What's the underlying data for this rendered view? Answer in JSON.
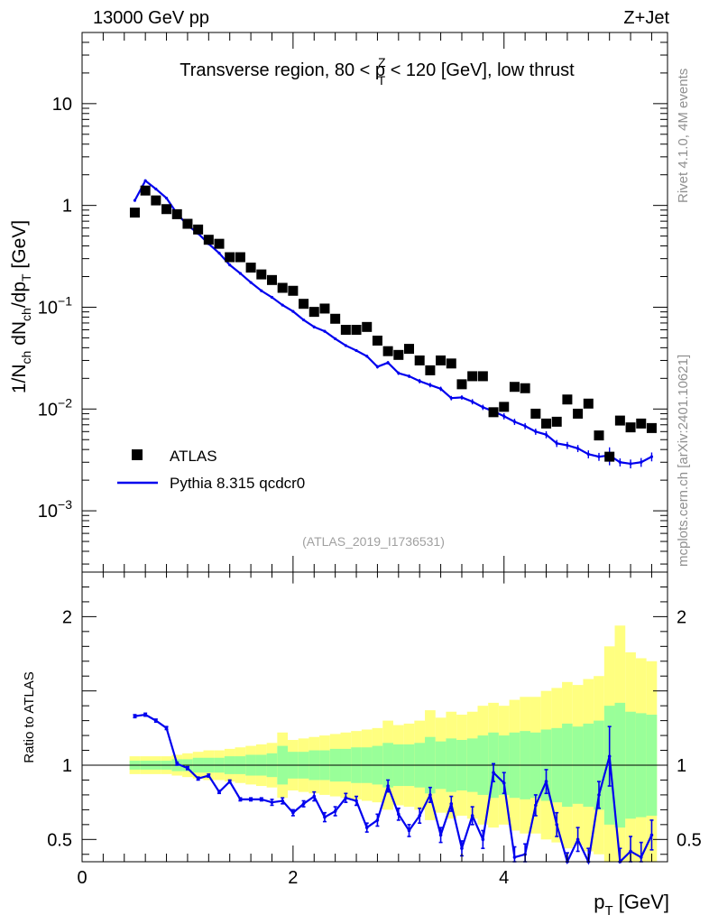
{
  "header": {
    "left": "13000 GeV pp",
    "right": "Z+Jet"
  },
  "side_labels": {
    "rivet": "Rivet 4.1.0,  4M events",
    "mcplots": "mcplots.cern.ch [arXiv:2401.10621]"
  },
  "chart_data": {
    "type": "scatter",
    "title": "Transverse region, 80 < p",
    "title_sup": "Z",
    "title_sub": "T",
    "title_tail": " < 120 [GeV], low thrust",
    "analysis_id": "(ATLAS_2019_I1736531)",
    "ylabel": {
      "pre": "1/N",
      "s1": "ch",
      "mid": " dN",
      "s2": "ch",
      "mid2": "/dp",
      "s3": "T",
      "post": " [GeV]"
    },
    "xlabel": {
      "main": "p",
      "sub": "T",
      "post": " [GeV]"
    },
    "ratio_ylabel": "Ratio to ATLAS",
    "xlim": [
      0,
      5.55
    ],
    "ylim": [
      0.00025,
      50
    ],
    "yscale": "log",
    "x_ticks": [
      0,
      2,
      4
    ],
    "x_tick_labels": [
      "0",
      "2",
      "4"
    ],
    "y_ticks": [
      10,
      1,
      0.1,
      0.01,
      0.001
    ],
    "y_tick_labels": [
      {
        "base": "10",
        "exp": ""
      },
      {
        "base": "1",
        "exp": ""
      },
      {
        "base": "10",
        "exp": "−1"
      },
      {
        "base": "10",
        "exp": "−2"
      },
      {
        "base": "10",
        "exp": "−3"
      }
    ],
    "ratio_ylim": [
      0.35,
      2.3
    ],
    "ratio_ticks": [
      2,
      1,
      0.5
    ],
    "ratio_tick_labels": [
      "2",
      "1",
      "0.5"
    ],
    "legend": [
      {
        "label": "ATLAS",
        "marker": "square",
        "color": "#000000"
      },
      {
        "label": "Pythia 8.315 qcdcr0",
        "marker": "line",
        "color": "#0000ee"
      }
    ],
    "colors": {
      "data": "#000000",
      "mc": "#0000ee",
      "band_inner": "#99ff99",
      "band_outer": "#ffff80"
    },
    "x": [
      0.5,
      0.6,
      0.7,
      0.8,
      0.9,
      1.0,
      1.1,
      1.2,
      1.3,
      1.4,
      1.5,
      1.6,
      1.7,
      1.8,
      1.9,
      2.0,
      2.1,
      2.2,
      2.3,
      2.4,
      2.5,
      2.6,
      2.7,
      2.8,
      2.9,
      3.0,
      3.1,
      3.2,
      3.3,
      3.4,
      3.5,
      3.6,
      3.7,
      3.8,
      3.9,
      4.0,
      4.1,
      4.2,
      4.3,
      4.4,
      4.5,
      4.6,
      4.7,
      4.8,
      4.9,
      5.0,
      5.1,
      5.2,
      5.3,
      5.4
    ],
    "series": [
      {
        "name": "ATLAS",
        "values": [
          0.85,
          1.4,
          1.12,
          0.92,
          0.82,
          0.66,
          0.58,
          0.46,
          0.42,
          0.31,
          0.31,
          0.245,
          0.21,
          0.185,
          0.155,
          0.145,
          0.108,
          0.09,
          0.097,
          0.077,
          0.06,
          0.06,
          0.064,
          0.047,
          0.037,
          0.034,
          0.039,
          0.03,
          0.024,
          0.03,
          0.028,
          0.0175,
          0.021,
          0.021,
          0.0093,
          0.0105,
          0.0165,
          0.016,
          0.009,
          0.0072,
          0.0075,
          0.0124,
          0.009,
          0.0113,
          0.0055,
          0.0034,
          0.0077,
          0.0066,
          0.0072,
          0.0065
        ]
      },
      {
        "name": "Pythia 8.315 qcdcr0",
        "values": [
          1.12,
          1.75,
          1.45,
          1.18,
          0.83,
          0.64,
          0.53,
          0.42,
          0.34,
          0.26,
          0.215,
          0.175,
          0.145,
          0.125,
          0.105,
          0.091,
          0.075,
          0.064,
          0.058,
          0.049,
          0.042,
          0.0375,
          0.033,
          0.026,
          0.0285,
          0.0225,
          0.021,
          0.0188,
          0.0172,
          0.0158,
          0.0128,
          0.013,
          0.0118,
          0.0104,
          0.0095,
          0.0085,
          0.0075,
          0.0068,
          0.006,
          0.0056,
          0.0046,
          0.0044,
          0.0041,
          0.0036,
          0.0034,
          0.0035,
          0.003,
          0.0029,
          0.003,
          0.0034
        ]
      }
    ],
    "ratio_values": [
      1.33,
      1.34,
      1.3,
      1.25,
      1.01,
      0.98,
      0.91,
      0.93,
      0.82,
      0.89,
      0.77,
      0.77,
      0.77,
      0.75,
      0.76,
      0.68,
      0.74,
      0.79,
      0.65,
      0.69,
      0.78,
      0.76,
      0.58,
      0.63,
      0.86,
      0.67,
      0.56,
      0.66,
      0.8,
      0.53,
      0.74,
      0.44,
      0.66,
      0.5,
      0.95,
      0.88,
      0.38,
      0.4,
      0.73,
      0.89,
      0.6,
      0.33,
      0.5,
      0.35,
      0.8,
      1.06,
      0.35,
      0.42,
      0.38,
      0.53
    ],
    "ratio_errors": [
      0.01,
      0.01,
      0.01,
      0.01,
      0.01,
      0.01,
      0.01,
      0.01,
      0.01,
      0.01,
      0.01,
      0.01,
      0.01,
      0.02,
      0.02,
      0.02,
      0.02,
      0.03,
      0.03,
      0.03,
      0.03,
      0.03,
      0.03,
      0.04,
      0.04,
      0.04,
      0.04,
      0.05,
      0.05,
      0.05,
      0.05,
      0.05,
      0.06,
      0.06,
      0.06,
      0.07,
      0.07,
      0.07,
      0.07,
      0.08,
      0.08,
      0.08,
      0.08,
      0.09,
      0.09,
      0.2,
      0.09,
      0.1,
      0.1,
      0.1
    ],
    "band_inner": [
      0.03,
      0.03,
      0.03,
      0.03,
      0.04,
      0.04,
      0.05,
      0.05,
      0.05,
      0.06,
      0.06,
      0.07,
      0.07,
      0.08,
      0.13,
      0.09,
      0.09,
      0.1,
      0.1,
      0.11,
      0.11,
      0.12,
      0.12,
      0.13,
      0.15,
      0.14,
      0.14,
      0.15,
      0.19,
      0.16,
      0.18,
      0.17,
      0.18,
      0.2,
      0.22,
      0.2,
      0.22,
      0.23,
      0.22,
      0.24,
      0.25,
      0.28,
      0.26,
      0.28,
      0.3,
      0.4,
      0.42,
      0.36,
      0.35,
      0.34
    ],
    "band_outer": [
      0.06,
      0.06,
      0.06,
      0.06,
      0.07,
      0.08,
      0.09,
      0.1,
      0.1,
      0.11,
      0.12,
      0.13,
      0.14,
      0.15,
      0.22,
      0.17,
      0.18,
      0.19,
      0.2,
      0.21,
      0.22,
      0.23,
      0.24,
      0.25,
      0.3,
      0.27,
      0.28,
      0.3,
      0.37,
      0.32,
      0.36,
      0.34,
      0.36,
      0.4,
      0.42,
      0.4,
      0.44,
      0.46,
      0.46,
      0.5,
      0.52,
      0.56,
      0.54,
      0.58,
      0.6,
      0.8,
      0.94,
      0.76,
      0.72,
      0.7
    ]
  }
}
